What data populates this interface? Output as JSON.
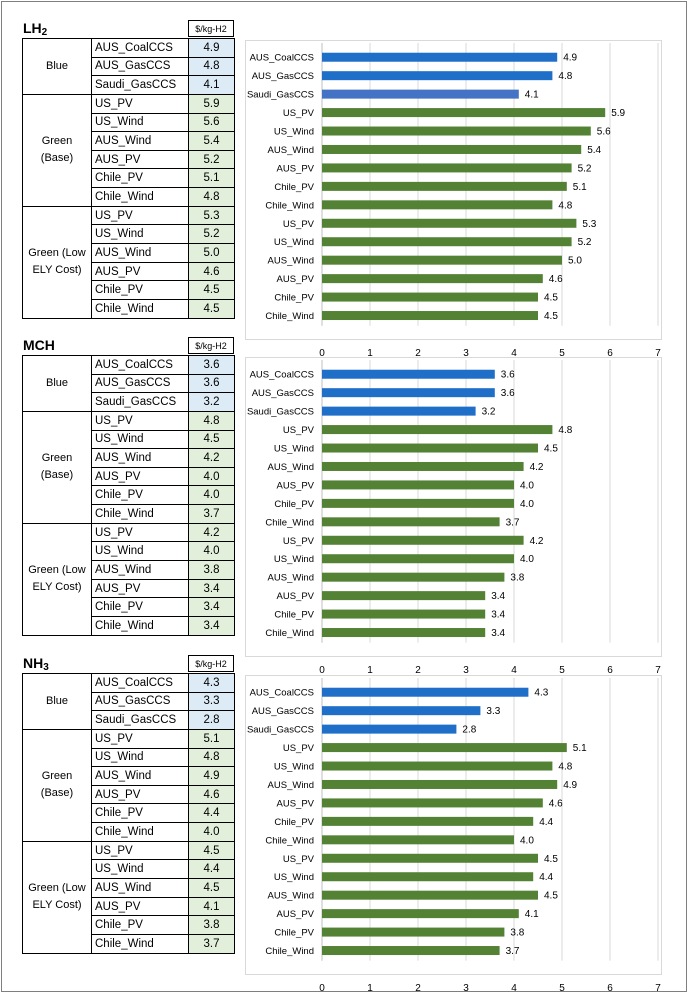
{
  "colors": {
    "blue": "#1f6fc9",
    "blue_light": "#4472c4",
    "green": "#548235"
  },
  "sections": [
    {
      "title": "LH",
      "title_sub": "2",
      "unit": "$/kg-H2",
      "groups": [
        {
          "label_lines": [
            "Blue"
          ],
          "rows": [
            [
              "AUS_CoalCCS",
              "4.9"
            ],
            [
              "AUS_GasCCS",
              "4.8"
            ],
            [
              "Saudi_GasCCS",
              "4.1"
            ]
          ],
          "kind": "blue"
        },
        {
          "label_lines": [
            "Green",
            "(Base)"
          ],
          "rows": [
            [
              "US_PV",
              "5.9"
            ],
            [
              "US_Wind",
              "5.6"
            ],
            [
              "AUS_Wind",
              "5.4"
            ],
            [
              "AUS_PV",
              "5.2"
            ],
            [
              "Chile_PV",
              "5.1"
            ],
            [
              "Chile_Wind",
              "4.8"
            ]
          ],
          "kind": "green"
        },
        {
          "label_lines": [
            "Green (Low",
            "ELY Cost)"
          ],
          "rows": [
            [
              "US_PV",
              "5.3"
            ],
            [
              "US_Wind",
              "5.2"
            ],
            [
              "AUS_Wind",
              "5.0"
            ],
            [
              "AUS_PV",
              "4.6"
            ],
            [
              "Chile_PV",
              "4.5"
            ],
            [
              "Chile_Wind",
              "4.5"
            ]
          ],
          "kind": "green"
        }
      ]
    },
    {
      "title": "MCH",
      "title_sub": "",
      "unit": "$/kg-H2",
      "groups": [
        {
          "label_lines": [
            "Blue"
          ],
          "rows": [
            [
              "AUS_CoalCCS",
              "3.6"
            ],
            [
              "AUS_GasCCS",
              "3.6"
            ],
            [
              "Saudi_GasCCS",
              "3.2"
            ]
          ],
          "kind": "blue"
        },
        {
          "label_lines": [
            "Green",
            "(Base)"
          ],
          "rows": [
            [
              "US_PV",
              "4.8"
            ],
            [
              "US_Wind",
              "4.5"
            ],
            [
              "AUS_Wind",
              "4.2"
            ],
            [
              "AUS_PV",
              "4.0"
            ],
            [
              "Chile_PV",
              "4.0"
            ],
            [
              "Chile_Wind",
              "3.7"
            ]
          ],
          "kind": "green"
        },
        {
          "label_lines": [
            "Green (Low",
            "ELY Cost)"
          ],
          "rows": [
            [
              "US_PV",
              "4.2"
            ],
            [
              "US_Wind",
              "4.0"
            ],
            [
              "AUS_Wind",
              "3.8"
            ],
            [
              "AUS_PV",
              "3.4"
            ],
            [
              "Chile_PV",
              "3.4"
            ],
            [
              "Chile_Wind",
              "3.4"
            ]
          ],
          "kind": "green"
        }
      ]
    },
    {
      "title": "NH",
      "title_sub": "3",
      "unit": "$/kg-H2",
      "groups": [
        {
          "label_lines": [
            "Blue"
          ],
          "rows": [
            [
              "AUS_CoalCCS",
              "4.3"
            ],
            [
              "AUS_GasCCS",
              "3.3"
            ],
            [
              "Saudi_GasCCS",
              "2.8"
            ]
          ],
          "kind": "blue"
        },
        {
          "label_lines": [
            "Green",
            "(Base)"
          ],
          "rows": [
            [
              "US_PV",
              "5.1"
            ],
            [
              "US_Wind",
              "4.8"
            ],
            [
              "AUS_Wind",
              "4.9"
            ],
            [
              "AUS_PV",
              "4.6"
            ],
            [
              "Chile_PV",
              "4.4"
            ],
            [
              "Chile_Wind",
              "4.0"
            ]
          ],
          "kind": "green"
        },
        {
          "label_lines": [
            "Green (Low",
            "ELY Cost)"
          ],
          "rows": [
            [
              "US_PV",
              "4.5"
            ],
            [
              "US_Wind",
              "4.4"
            ],
            [
              "AUS_Wind",
              "4.5"
            ],
            [
              "AUS_PV",
              "4.1"
            ],
            [
              "Chile_PV",
              "3.8"
            ],
            [
              "Chile_Wind",
              "3.7"
            ]
          ],
          "kind": "green"
        }
      ]
    }
  ],
  "chart_data": [
    {
      "type": "bar",
      "orientation": "horizontal",
      "title": "LH2",
      "categories": [
        "AUS_CoalCCS",
        "AUS_GasCCS",
        "Saudi_GasCCS",
        "US_PV",
        "US_Wind",
        "AUS_Wind",
        "AUS_PV",
        "Chile_PV",
        "Chile_Wind",
        "US_PV",
        "US_Wind",
        "AUS_Wind",
        "AUS_PV",
        "Chile_PV",
        "Chile_Wind"
      ],
      "values": [
        4.9,
        4.8,
        4.1,
        5.9,
        5.6,
        5.4,
        5.2,
        5.1,
        4.8,
        5.3,
        5.2,
        5.0,
        4.6,
        4.5,
        4.5
      ],
      "bar_colors": [
        "blue",
        "blue",
        "blue_light",
        "green",
        "green",
        "green",
        "green",
        "green",
        "green",
        "green",
        "green",
        "green",
        "green",
        "green",
        "green"
      ],
      "xlim": [
        0,
        7
      ],
      "xticks": [
        0,
        1,
        2,
        3,
        4,
        5,
        6,
        7
      ],
      "grid": "vertical"
    },
    {
      "type": "bar",
      "orientation": "horizontal",
      "title": "MCH",
      "categories": [
        "AUS_CoalCCS",
        "AUS_GasCCS",
        "Saudi_GasCCS",
        "US_PV",
        "US_Wind",
        "AUS_Wind",
        "AUS_PV",
        "Chile_PV",
        "Chile_Wind",
        "US_PV",
        "US_Wind",
        "AUS_Wind",
        "AUS_PV",
        "Chile_PV",
        "Chile_Wind"
      ],
      "values": [
        3.6,
        3.6,
        3.2,
        4.8,
        4.5,
        4.2,
        4.0,
        4.0,
        3.7,
        4.2,
        4.0,
        3.8,
        3.4,
        3.4,
        3.4
      ],
      "bar_colors": [
        "blue",
        "blue",
        "blue",
        "green",
        "green",
        "green",
        "green",
        "green",
        "green",
        "green",
        "green",
        "green",
        "green",
        "green",
        "green"
      ],
      "xlim": [
        0,
        7
      ],
      "xticks": [
        0,
        1,
        2,
        3,
        4,
        5,
        6,
        7
      ],
      "grid": "vertical"
    },
    {
      "type": "bar",
      "orientation": "horizontal",
      "title": "NH3",
      "categories": [
        "AUS_CoalCCS",
        "AUS_GasCCS",
        "Saudi_GasCCS",
        "US_PV",
        "US_Wind",
        "AUS_Wind",
        "AUS_PV",
        "Chile_PV",
        "Chile_Wind",
        "US_PV",
        "US_Wind",
        "AUS_Wind",
        "AUS_PV",
        "Chile_PV",
        "Chile_Wind"
      ],
      "values": [
        4.3,
        3.3,
        2.8,
        5.1,
        4.8,
        4.9,
        4.6,
        4.4,
        4.0,
        4.5,
        4.4,
        4.5,
        4.1,
        3.8,
        3.7
      ],
      "bar_colors": [
        "blue",
        "blue",
        "blue",
        "green",
        "green",
        "green",
        "green",
        "green",
        "green",
        "green",
        "green",
        "green",
        "green",
        "green",
        "green"
      ],
      "xlim": [
        0,
        7
      ],
      "xticks": [
        0,
        1,
        2,
        3,
        4,
        5,
        6,
        7
      ],
      "grid": "vertical"
    }
  ]
}
